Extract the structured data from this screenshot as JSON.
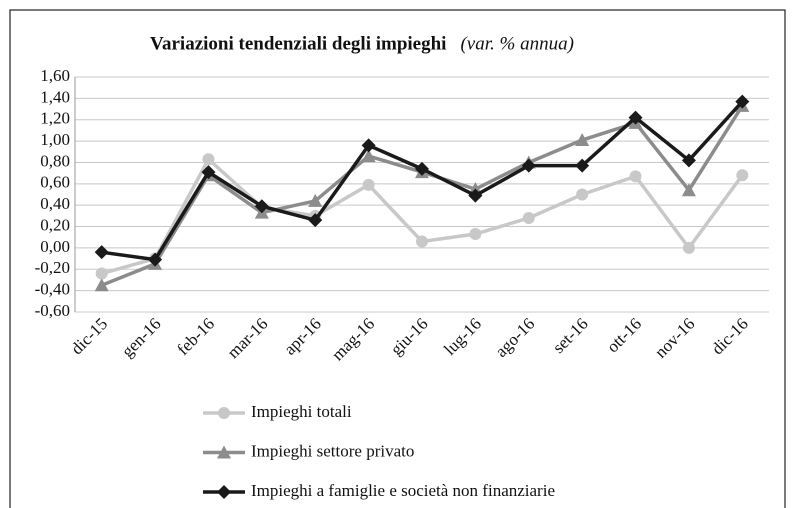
{
  "chart_data": {
    "type": "line",
    "title": "Variazioni tendenziali degli impieghi",
    "subtitle": "(var. % annua)",
    "categories": [
      "dic-15",
      "gen-16",
      "feb-16",
      "mar-16",
      "apr-16",
      "mag-16",
      "giu-16",
      "lug-16",
      "ago-16",
      "set-16",
      "ott-16",
      "nov-16",
      "dic-16"
    ],
    "series": [
      {
        "name": "Impieghi totali",
        "color": "#c8c8c8",
        "marker": "circle",
        "values": [
          -0.24,
          -0.1,
          0.83,
          0.38,
          0.3,
          0.59,
          0.06,
          0.13,
          0.28,
          0.5,
          0.67,
          0.0,
          0.68
        ]
      },
      {
        "name": "Impieghi settore privato",
        "color": "#8c8c8c",
        "marker": "triangle",
        "values": [
          -0.35,
          -0.15,
          0.68,
          0.33,
          0.44,
          0.86,
          0.71,
          0.55,
          0.8,
          1.01,
          1.17,
          0.54,
          1.33
        ]
      },
      {
        "name": "Impieghi a famiglie e società non finanziarie",
        "color": "#1a1a1a",
        "marker": "diamond",
        "values": [
          -0.04,
          -0.11,
          0.71,
          0.39,
          0.26,
          0.96,
          0.74,
          0.49,
          0.77,
          0.77,
          1.22,
          0.82,
          1.37
        ]
      }
    ],
    "ylim": [
      -0.6,
      1.6
    ],
    "yticks": [
      {
        "value": -0.6,
        "label": "-0,60"
      },
      {
        "value": -0.4,
        "label": "-0,40"
      },
      {
        "value": -0.2,
        "label": "-0,20"
      },
      {
        "value": 0,
        "label": "0,00"
      },
      {
        "value": 0.2,
        "label": "0,20"
      },
      {
        "value": 0.4,
        "label": "0,40"
      },
      {
        "value": 0.6,
        "label": "0,60"
      },
      {
        "value": 0.8,
        "label": "0,80"
      },
      {
        "value": 1.0,
        "label": "1,00"
      },
      {
        "value": 1.2,
        "label": "1,20"
      },
      {
        "value": 1.4,
        "label": "1,40"
      },
      {
        "value": 1.6,
        "label": "1,60"
      }
    ],
    "grid": true,
    "legend": "bottom"
  }
}
